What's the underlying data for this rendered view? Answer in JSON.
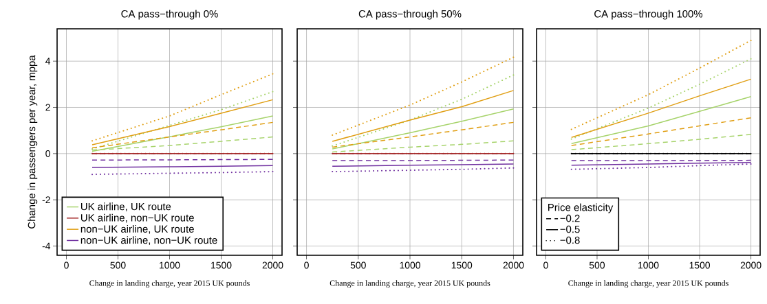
{
  "chart_data": [
    {
      "type": "line",
      "title": "CA pass−through 0%",
      "xlabel": "Change in landing charge, year 2015 UK pounds",
      "ylabel": "Change in passengers per year, mppa",
      "xlim": [
        -90,
        2090
      ],
      "ylim": [
        -4.4,
        5.4
      ],
      "xticks": [
        0,
        500,
        1000,
        1500,
        2000
      ],
      "yticks": [
        -4,
        -2,
        0,
        2,
        4
      ],
      "grid": true,
      "legend": "bottom left",
      "x": [
        250,
        1000,
        1500,
        2000
      ],
      "series": [
        {
          "color": "#a6d36a",
          "line_style": "dashed",
          "values": [
            0.15,
            0.35,
            0.53,
            0.72
          ]
        },
        {
          "name": "UK airline, UK route",
          "color": "#a6d36a",
          "line_style": "solid",
          "values": [
            0.1,
            0.73,
            1.16,
            1.63
          ]
        },
        {
          "color": "#a6d36a",
          "line_style": "dotted",
          "values": [
            0.2,
            1.22,
            1.9,
            2.68
          ]
        },
        {
          "color": "#a52a2a",
          "line_style": "dashed",
          "values": [
            0,
            0,
            0,
            0
          ]
        },
        {
          "name": "UK airline, non−UK route",
          "color": "#a52a2a",
          "line_style": "solid",
          "values": [
            0,
            0,
            0,
            0
          ]
        },
        {
          "color": "#a52a2a",
          "line_style": "dotted",
          "values": [
            0,
            0,
            0,
            0
          ]
        },
        {
          "color": "#e09e12",
          "line_style": "dashed",
          "values": [
            0.25,
            0.72,
            1.03,
            1.35
          ]
        },
        {
          "name": "non−UK airline, UK route",
          "color": "#e09e12",
          "line_style": "solid",
          "values": [
            0.38,
            1.17,
            1.75,
            2.33
          ]
        },
        {
          "color": "#e09e12",
          "line_style": "dotted",
          "values": [
            0.55,
            1.63,
            2.55,
            3.45
          ]
        },
        {
          "color": "#7030a0",
          "line_style": "dashed",
          "values": [
            -0.28,
            -0.27,
            -0.26,
            -0.25
          ]
        },
        {
          "name": "non−UK airline, non−UK route",
          "color": "#7030a0",
          "line_style": "solid",
          "values": [
            -0.6,
            -0.57,
            -0.55,
            -0.52
          ]
        },
        {
          "color": "#7030a0",
          "line_style": "dotted",
          "values": [
            -0.9,
            -0.85,
            -0.82,
            -0.78
          ]
        }
      ]
    },
    {
      "type": "line",
      "title": "CA pass−through 50%",
      "xlabel": "Change in landing charge, year 2015 UK pounds",
      "xlim": [
        -90,
        2090
      ],
      "ylim": [
        -4.4,
        5.4
      ],
      "xticks": [
        0,
        500,
        1000,
        1500,
        2000
      ],
      "yticks": [
        -4,
        -2,
        0,
        2,
        4
      ],
      "tick_labels": "x",
      "grid": true,
      "x": [
        250,
        1000,
        1500,
        2000
      ],
      "series": [
        {
          "color": "#a6d36a",
          "line_style": "dashed",
          "values": [
            0.07,
            0.28,
            0.4,
            0.55
          ]
        },
        {
          "color": "#a6d36a",
          "line_style": "solid",
          "values": [
            0.2,
            0.9,
            1.4,
            1.93
          ]
        },
        {
          "color": "#a6d36a",
          "line_style": "dotted",
          "values": [
            0.33,
            1.45,
            2.35,
            3.4
          ]
        },
        {
          "color": "#a52a2a",
          "line_style": "dashed",
          "values": [
            0,
            0,
            0,
            0
          ]
        },
        {
          "color": "#a52a2a",
          "line_style": "solid",
          "values": [
            0,
            0,
            0,
            0
          ]
        },
        {
          "color": "#a52a2a",
          "line_style": "dotted",
          "values": [
            0,
            0,
            0,
            0
          ]
        },
        {
          "color": "#e09e12",
          "line_style": "dashed",
          "values": [
            0.28,
            0.72,
            1.03,
            1.35
          ]
        },
        {
          "color": "#e09e12",
          "line_style": "solid",
          "values": [
            0.53,
            1.45,
            2.03,
            2.73
          ]
        },
        {
          "color": "#e09e12",
          "line_style": "dotted",
          "values": [
            0.8,
            2.1,
            3.1,
            4.17
          ]
        },
        {
          "color": "#7030a0",
          "line_style": "dashed",
          "values": [
            -0.3,
            -0.3,
            -0.29,
            -0.28
          ]
        },
        {
          "color": "#7030a0",
          "line_style": "solid",
          "values": [
            -0.55,
            -0.5,
            -0.48,
            -0.45
          ]
        },
        {
          "color": "#7030a0",
          "line_style": "dotted",
          "values": [
            -0.78,
            -0.72,
            -0.68,
            -0.62
          ]
        }
      ]
    },
    {
      "type": "line",
      "title": "CA pass−through 100%",
      "xlabel": "Change in landing charge, year 2015 UK pounds",
      "xlim": [
        -90,
        2090
      ],
      "ylim": [
        -4.4,
        5.4
      ],
      "xticks": [
        0,
        500,
        1000,
        1500,
        2000
      ],
      "yticks": [
        -4,
        -2,
        0,
        2,
        4
      ],
      "tick_labels": "x",
      "grid": true,
      "legend": "bottom left",
      "legend_title": "Price elasticity",
      "x": [
        250,
        1000,
        1500,
        2000
      ],
      "series": [
        {
          "color": "#a6d36a",
          "line_style": "dashed",
          "values": [
            0.17,
            0.43,
            0.62,
            0.83
          ]
        },
        {
          "color": "#a6d36a",
          "line_style": "solid",
          "values": [
            0.43,
            1.2,
            1.83,
            2.47
          ]
        },
        {
          "color": "#a6d36a",
          "line_style": "dotted",
          "values": [
            0.63,
            1.97,
            3.0,
            4.1
          ]
        },
        {
          "name": "−0.2",
          "color": "#000000",
          "line_style": "dashed",
          "values": [
            0,
            0,
            0,
            0
          ]
        },
        {
          "name": "−0.5",
          "color": "#000000",
          "line_style": "solid",
          "values": [
            0,
            0,
            0,
            0
          ]
        },
        {
          "name": "−0.8",
          "color": "#000000",
          "line_style": "dotted",
          "values": [
            0,
            0,
            0,
            0
          ]
        },
        {
          "color": "#e09e12",
          "line_style": "dashed",
          "values": [
            0.35,
            0.85,
            1.2,
            1.55
          ]
        },
        {
          "color": "#e09e12",
          "line_style": "solid",
          "values": [
            0.7,
            1.75,
            2.5,
            3.22
          ]
        },
        {
          "color": "#e09e12",
          "line_style": "dotted",
          "values": [
            1.05,
            2.55,
            3.7,
            4.9
          ]
        },
        {
          "color": "#7030a0",
          "line_style": "dashed",
          "values": [
            -0.3,
            -0.3,
            -0.3,
            -0.29
          ]
        },
        {
          "color": "#7030a0",
          "line_style": "solid",
          "values": [
            -0.5,
            -0.45,
            -0.41,
            -0.38
          ]
        },
        {
          "color": "#7030a0",
          "line_style": "dotted",
          "values": [
            -0.68,
            -0.6,
            -0.52,
            -0.45
          ]
        }
      ]
    }
  ]
}
